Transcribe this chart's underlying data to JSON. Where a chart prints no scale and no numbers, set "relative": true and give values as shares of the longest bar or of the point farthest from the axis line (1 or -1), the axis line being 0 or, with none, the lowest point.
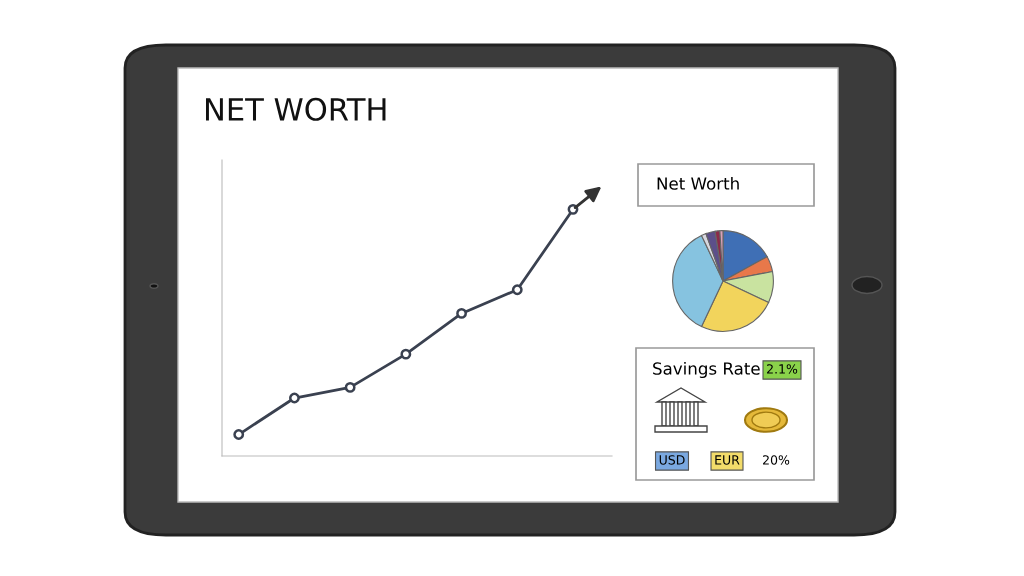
{
  "chart_data": [
    {
      "type": "line",
      "title": "NET WORTH",
      "relative": true,
      "categories": [
        null,
        null,
        null,
        null,
        null,
        null,
        null
      ],
      "marker": "circle",
      "line_style": "solid",
      "grid": false,
      "legend": false,
      "series": [
        {
          "color": "#3a4150",
          "values": [
            0.087,
            0.235,
            0.278,
            0.413,
            0.578,
            0.674,
            1
          ]
        }
      ]
    },
    {
      "type": "pie",
      "title": "Net Worth",
      "categories": [
        null,
        null,
        null,
        null,
        null,
        null,
        null,
        null,
        null
      ],
      "values": [
        17,
        5,
        10,
        25,
        36,
        1.5,
        3,
        1.5,
        1
      ],
      "colors": [
        "#3f6fb5",
        "#e8784a",
        "#c9e3a0",
        "#f2d45c",
        "#86c3e0",
        "#d8d8e0",
        "#5c4f8a",
        "#8b2b4a",
        "#d9a0b8"
      ]
    },
    {
      "type": "other",
      "title": "Savings Rate",
      "annotations": [
        "2.1%",
        "USD",
        "EUR",
        "20%"
      ]
    }
  ]
}
